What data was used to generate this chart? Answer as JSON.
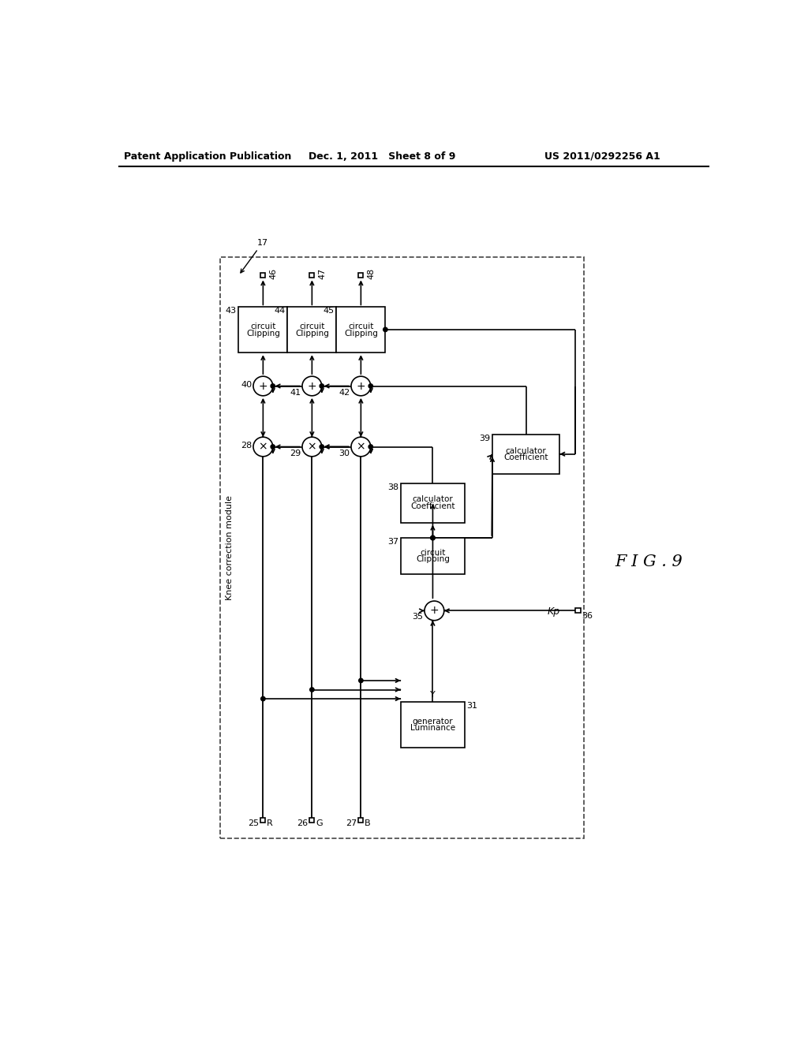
{
  "title_left": "Patent Application Publication",
  "title_center": "Dec. 1, 2011   Sheet 8 of 9",
  "title_right": "US 2011/0292256 A1",
  "fig_label": "F I G . 9",
  "module_label": "Knee correction module",
  "bg_color": "#ffffff",
  "lc": "#000000"
}
